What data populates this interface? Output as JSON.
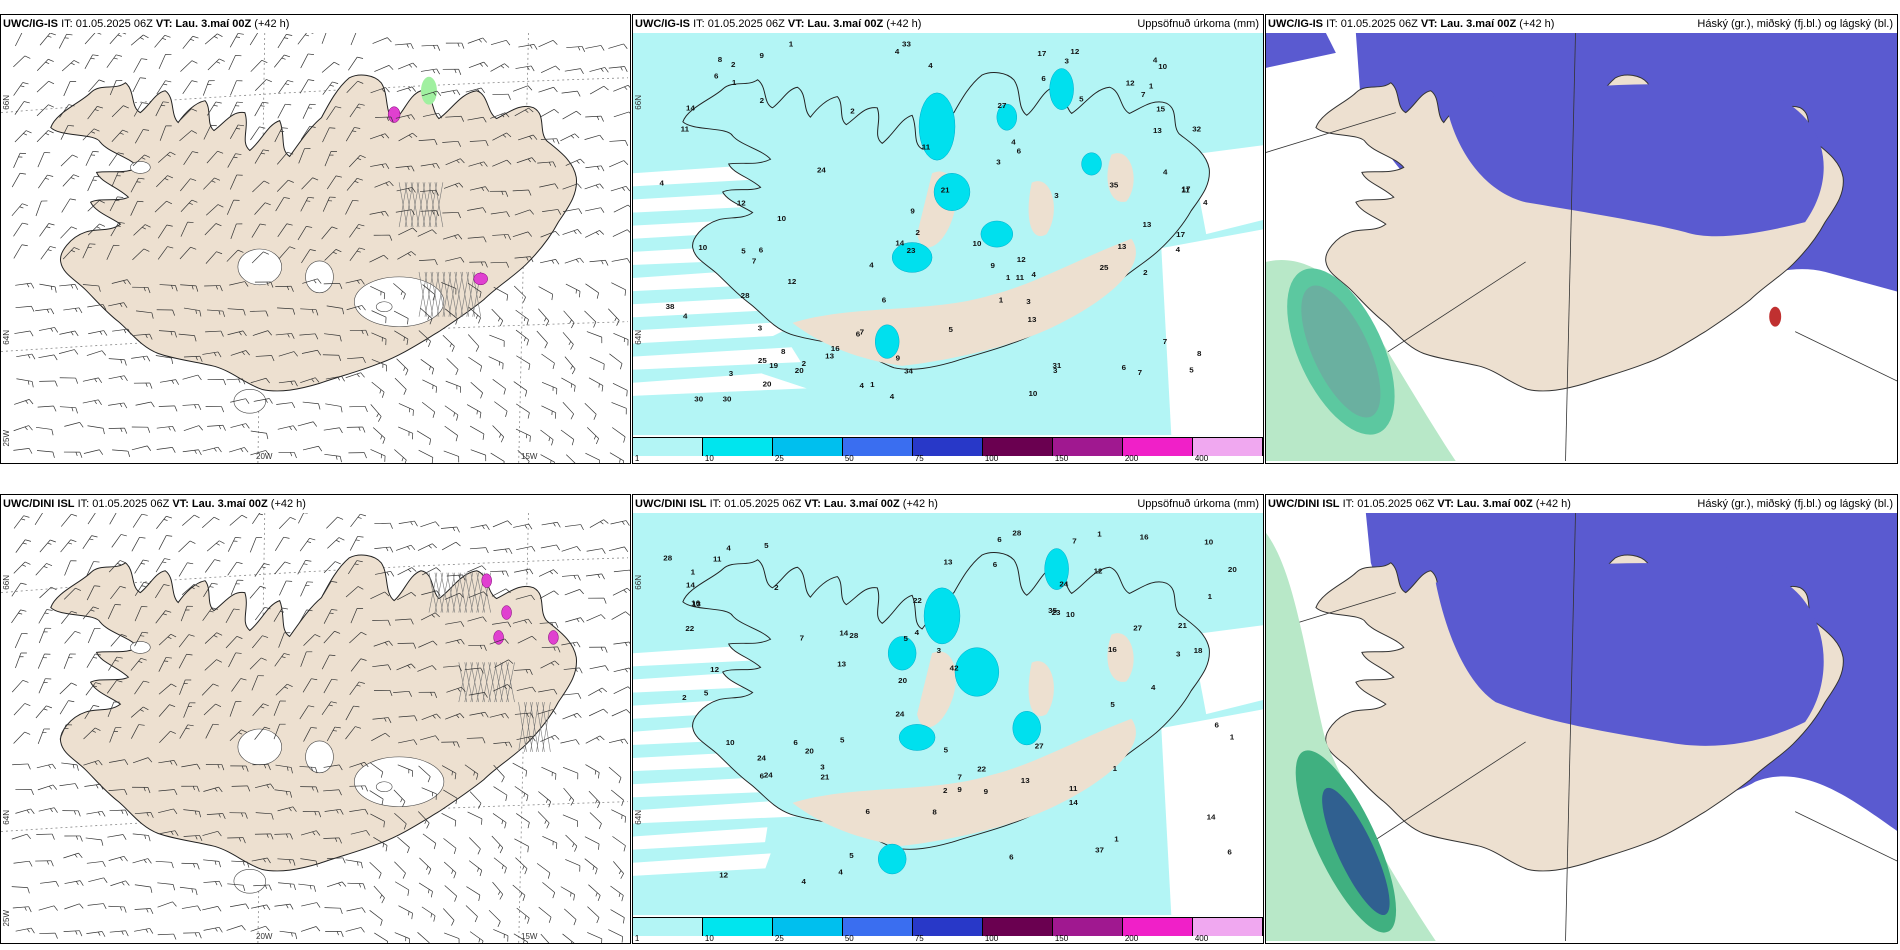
{
  "panels": [
    {
      "model": "UWC/IG-IS",
      "it": "IT: 01.05.2025 06Z",
      "vt_label": "VT:",
      "vt": "Lau. 3.maí 00Z",
      "lead": "(+42 h)",
      "right": "",
      "kind": "wind",
      "coords": {
        "top": "66N",
        "mid": "64N",
        "bottom": "25W",
        "x1": "20W",
        "x2": "15W"
      }
    },
    {
      "model": "UWC/IG-IS",
      "it": "IT: 01.05.2025 06Z",
      "vt_label": "VT:",
      "vt": "Lau. 3.maí 00Z",
      "lead": "(+42 h)",
      "right": "Uppsöfnuð úrkoma (mm)",
      "kind": "precip",
      "coords": {
        "top": "66N",
        "mid": "64N"
      }
    },
    {
      "model": "UWC/IG-IS",
      "it": "IT: 01.05.2025 06Z",
      "vt_label": "VT:",
      "vt": "Lau. 3.maí 00Z",
      "lead": "(+42 h)",
      "right": "Háský (gr.), miðský (fj.bl.) og lágský (bl.)",
      "kind": "cloud"
    },
    {
      "model": "UWC/DINI ISL",
      "it": "IT: 01.05.2025 06Z",
      "vt_label": "VT:",
      "vt": "Lau. 3.maí 00Z",
      "lead": "(+42 h)",
      "right": "",
      "kind": "wind",
      "coords": {
        "top": "66N",
        "mid": "64N",
        "bottom": "25W",
        "x1": "20W",
        "x2": "15W"
      }
    },
    {
      "model": "UWC/DINI ISL",
      "it": "IT: 01.05.2025 06Z",
      "vt_label": "VT:",
      "vt": "Lau. 3.maí 00Z",
      "lead": "(+42 h)",
      "right": "Uppsöfnuð úrkoma (mm)",
      "kind": "precip",
      "coords": {
        "top": "66N",
        "mid": "64N"
      }
    },
    {
      "model": "UWC/DINI ISL",
      "it": "IT: 01.05.2025 06Z",
      "vt_label": "VT:",
      "vt": "Lau. 3.maí 00Z",
      "lead": "(+42 h)",
      "right": "Háský (gr.), miðský (fj.bl.) og lágský (bl.)",
      "kind": "cloud"
    }
  ],
  "legend": {
    "ticks": [
      "1",
      "10",
      "25",
      "50",
      "75",
      "100",
      "150",
      "200",
      "400"
    ],
    "colors": [
      "#b3f5f5",
      "#00e5ee",
      "#00bfee",
      "#3a6ef0",
      "#2838c8",
      "#6a0050",
      "#a01890",
      "#f020c8",
      "#f0a8f0"
    ]
  },
  "precip_labels": {
    "top": [
      "4",
      "3",
      "4",
      "3",
      "4",
      "4",
      "3",
      "4",
      "2",
      "3",
      "6",
      "7",
      "7",
      "5",
      "5",
      "6",
      "1",
      "4",
      "2",
      "4",
      "6",
      "8",
      "27",
      "33",
      "7",
      "9",
      "12",
      "6",
      "2",
      "4",
      "17",
      "38",
      "24",
      "4",
      "12",
      "13",
      "13",
      "4",
      "6",
      "30",
      "32",
      "6",
      "5",
      "4",
      "4",
      "30",
      "14",
      "11",
      "10",
      "10",
      "34",
      "3",
      "5",
      "8",
      "4",
      "1",
      "10",
      "25",
      "14",
      "21",
      "23",
      "7",
      "17",
      "8",
      "11",
      "9",
      "12",
      "12",
      "13",
      "16",
      "15",
      "7",
      "3",
      "6",
      "2",
      "11",
      "9",
      "10",
      "13",
      "25",
      "28",
      "10",
      "9",
      "13",
      "12",
      "31",
      "35",
      "20",
      "11",
      "2",
      "1",
      "1",
      "3",
      "1",
      "1",
      "2",
      "17",
      "20",
      "19"
    ],
    "bottom": [
      "3",
      "4",
      "5",
      "4",
      "5",
      "6",
      "5",
      "7",
      "6",
      "4",
      "6",
      "8",
      "27",
      "42",
      "6",
      "5",
      "12",
      "14",
      "16",
      "12",
      "13",
      "4",
      "28",
      "24",
      "3",
      "37",
      "28",
      "24",
      "6",
      "7",
      "14",
      "10",
      "5",
      "13",
      "18",
      "22",
      "16",
      "20",
      "6",
      "13",
      "10",
      "11",
      "3",
      "22",
      "5",
      "6",
      "6",
      "10",
      "9",
      "16",
      "21",
      "14",
      "21",
      "24",
      "12",
      "5",
      "14",
      "23",
      "35",
      "13",
      "9",
      "20",
      "11",
      "20",
      "7",
      "1",
      "24",
      "22",
      "4",
      "1",
      "2",
      "1",
      "1",
      "1",
      "2",
      "2",
      "1",
      "28",
      "27"
    ]
  }
}
